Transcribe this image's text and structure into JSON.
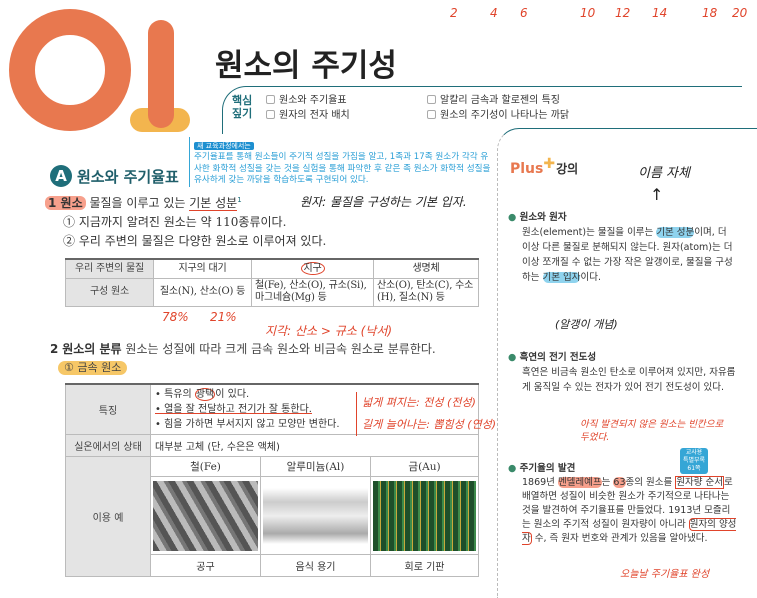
{
  "header": {
    "chapter_number": "01",
    "title": "원소의 주기성",
    "core_label": [
      "핵심",
      "짚기"
    ],
    "core_items": [
      "원소와 주기율표",
      "원자의 전자 배치",
      "알칼리 금속과 할로젠의 특징",
      "원소의 주기성이 나타나는 까닭"
    ]
  },
  "curriculum_note": {
    "tag": "새 교육과정에서는",
    "text": "주기율표를 통해 원소들이 주기적 성질을 가짐을 알고, 1족과 17족 원소가 각각 유사한 화학적 성질을 갖는 것을 실험을 통해 파악한 후 같은 족 원소가 화학적 성질을 유사하게 갖는 까닭을 학습하도록 구현되어 있다."
  },
  "section_a": {
    "badge": "A",
    "title": "원소와 주기율표"
  },
  "item1": {
    "num": "1",
    "term": "원소",
    "def_pre": "물질을 이루고 있는 ",
    "def_ul": "기본 성분",
    "note_mark": "1",
    "points": [
      "① 지금까지 알려진 원소는 약 110종류이다.",
      "② 우리 주변의 물질은 다양한 원소로 이루어져 있다."
    ]
  },
  "table1": {
    "headers": [
      "우리 주변의 물질",
      "지구의 대기",
      "지구",
      "생명체"
    ],
    "row_label": "구성 원소",
    "cells": [
      "질소(N), 산소(O) 등",
      "철(Fe), 산소(O), 규소(Si), 마그네슘(Mg) 등",
      "산소(O), 탄소(C), 수소(H), 질소(N) 등"
    ]
  },
  "item2": {
    "num": "2",
    "term": "원소의 분류",
    "text": "원소는 성질에 따라 크게 금속 원소와 비금속 원소로 분류한다.",
    "sub": "① 금속 원소"
  },
  "table2": {
    "feature_label": "특징",
    "features": [
      "• 특유의 광택이 있다.",
      "• 열을 잘 전달하고 전기가 잘 통한다.",
      "• 힘을 가하면 부서지지 않고 모양만 변한다."
    ],
    "state_label": "실온에서의 상태",
    "state": "대부분 고체 (단, 수은은 액체)",
    "use_label": "이용 예",
    "uses": [
      {
        "name": "철(Fe)",
        "caption": "공구"
      },
      {
        "name": "알루미늄(Al)",
        "caption": "음식 용기"
      },
      {
        "name": "금(Au)",
        "caption": "회로 기판"
      }
    ]
  },
  "plus": {
    "logo": "Plus",
    "title": "강의",
    "notes": [
      {
        "num": "1",
        "title": "원소와 원자",
        "text": "원소(element)는 물질을 이루는 기본 성분이며, 더 이상 다른 물질로 분해되지 않는다. 원자(atom)는 더 이상 쪼개질 수 없는 가장 작은 알갱이로, 물질을 구성하는 기본 입자이다."
      },
      {
        "num": "2",
        "title": "흑연의 전기 전도성",
        "text": "흑연은 비금속 원소인 탄소로 이루어져 있지만, 자유롭게 움직일 수 있는 전자가 있어 전기 전도성이 있다."
      },
      {
        "num": "3",
        "title": "주기율의 발견",
        "text": "1869년 멘델레예프는 63종의 원소를 원자량 순서로 배열하면 성질이 비슷한 원소가 주기적으로 나타나는 것을 발견하여 주기율표를 만들었다. 1913년 모즐리는 원소의 주기적 성질이 원자량이 아니라 원자의 양성자 수, 즉 원자 번호와 관계가 있음을 알아냈다."
      }
    ],
    "badge": [
      "교사용",
      "특별부록",
      "61쪽"
    ]
  },
  "handwriting": {
    "top_numbers": [
      "2",
      "4",
      "6",
      "10",
      "12",
      "14",
      "18",
      "20"
    ],
    "atom_def": "원자: 물질을 구성하는 기본 입자.",
    "percent": [
      "78%",
      "21%"
    ],
    "crust": "지각: 산소 > 규소 (낙서)",
    "malleable": "넓게 펴지는: 전성 (전성)",
    "ductile": "길게 늘어나는: 뽑힘성 (연성)",
    "name_itself": "이름 자체",
    "particle": "(알갱이 개념)",
    "undiscovered": "아직 발견되지 않은 원소는 빈칸으로 두었다.",
    "complete": "오늘날 주기율표 완성"
  },
  "colors": {
    "orange": "#e8784f",
    "yellow": "#f3b54e",
    "teal": "#1f6e7a",
    "blue": "#35a6d6",
    "red_ink": "#e0442b"
  }
}
